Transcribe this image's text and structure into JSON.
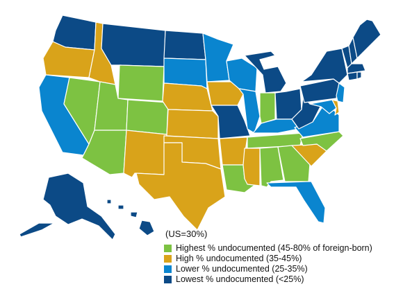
{
  "colors": {
    "highest": "#7dc242",
    "high": "#d9a31a",
    "lower": "#0a85cf",
    "lowest": "#0c4a86"
  },
  "legend": {
    "note": "(US=30%)",
    "items": [
      {
        "key": "highest",
        "label": "Highest % undocumented (45-80% of foreign-born)"
      },
      {
        "key": "high",
        "label": "High % undocumented (35-45%)"
      },
      {
        "key": "lower",
        "label": "Lower % undocumented (25-35%)"
      },
      {
        "key": "lowest",
        "label": "Lowest % undocumented (<25%)"
      }
    ]
  },
  "states": {
    "WA": "lowest",
    "OR": "high",
    "CA": "lower",
    "ID": "high",
    "NV": "highest",
    "MT": "lowest",
    "WY": "highest",
    "UT": "highest",
    "AZ": "highest",
    "CO": "highest",
    "NM": "high",
    "ND": "lowest",
    "SD": "lower",
    "NE": "high",
    "KS": "high",
    "OK": "high",
    "TX": "high",
    "MN": "lower",
    "IA": "high",
    "MO": "lowest",
    "AR": "high",
    "LA": "highest",
    "WI": "lower",
    "IL": "lower",
    "MI": "lowest",
    "IN": "highest",
    "OH": "lowest",
    "KY": "lower",
    "TN": "highest",
    "MS": "high",
    "AL": "highest",
    "GA": "highest",
    "FL": "lower",
    "SC": "high",
    "NC": "highest",
    "VA": "lower",
    "WV": "lowest",
    "PA": "lowest",
    "NY": "lowest",
    "NJ": "lower",
    "DE": "high",
    "MD": "lower",
    "VT": "lowest",
    "NH": "lowest",
    "ME": "lowest",
    "MA": "lowest",
    "CT": "lowest",
    "RI": "lowest",
    "AK": "lowest",
    "HI": "lowest"
  }
}
